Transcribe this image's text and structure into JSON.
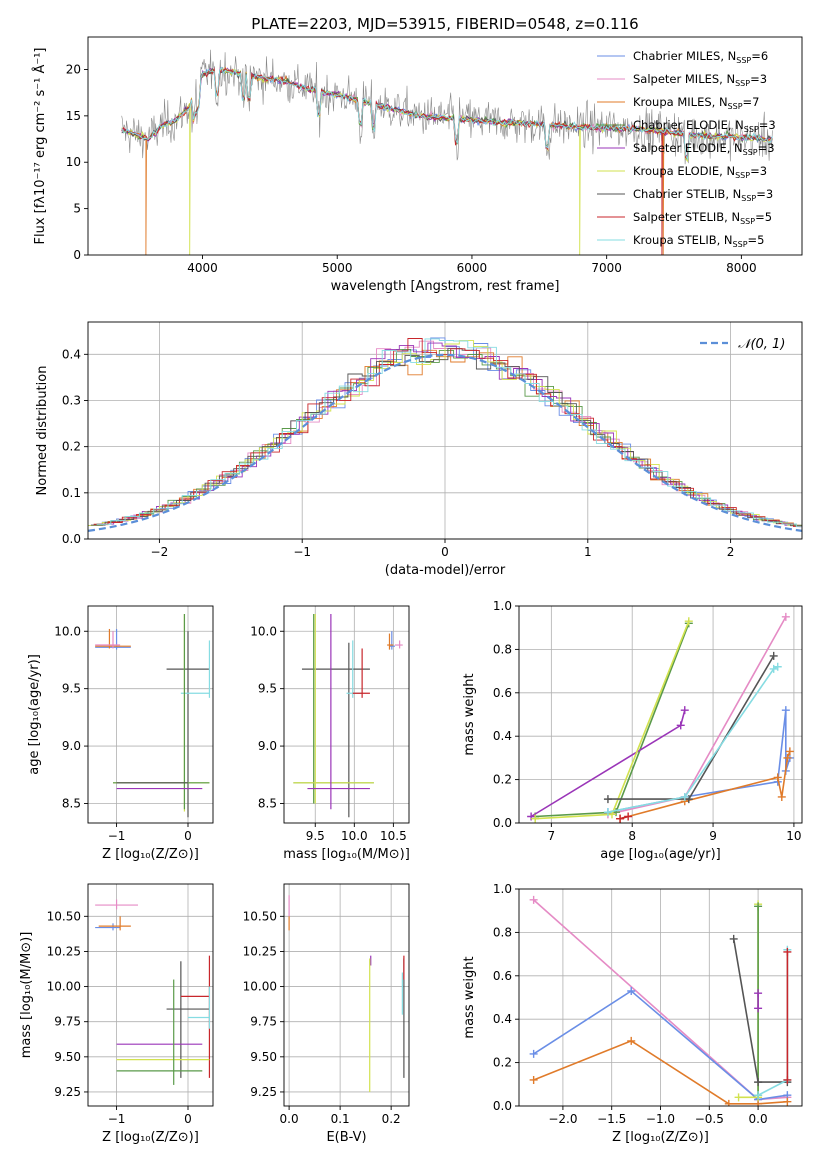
{
  "colors": {
    "blue": "#6a8ee6",
    "pink": "#e58bc5",
    "orange": "#e07b2a",
    "green": "#5a9a4a",
    "purple": "#9a35b8",
    "yellow": "#d2e24f",
    "dark": "#555555",
    "red": "#c8262b",
    "cyan": "#86dce2",
    "normal": "#5b8fd8",
    "gray": "#888888"
  },
  "chart_data": [
    {
      "id": "spectrum",
      "type": "line",
      "title": "PLATE=2203, MJD=53915, FIBERID=0548, z=0.116",
      "xlabel": "wavelength [Angstrom, rest frame]",
      "ylabel": "Flux [fλ10⁻¹⁷ erg cm⁻² s⁻¹ Å⁻¹]",
      "xlim": [
        3150,
        8450
      ],
      "ylim": [
        0,
        23.5
      ],
      "xticks": [
        "4000",
        "5000",
        "6000",
        "7000",
        "8000"
      ],
      "yticks": [
        "0",
        "5",
        "10",
        "15",
        "20"
      ],
      "grid": false,
      "legend_placement": "top-right",
      "legend": [
        {
          "label": "Chabrier MILES, N",
          "sub": "SSP",
          "suffix": "=6",
          "color": "blue"
        },
        {
          "label": "Salpeter MILES, N",
          "sub": "SSP",
          "suffix": "=3",
          "color": "pink"
        },
        {
          "label": "Kroupa MILES, N",
          "sub": "SSP",
          "suffix": "=7",
          "color": "orange"
        },
        {
          "label": "Chabrier ELODIE, N",
          "sub": "SSP",
          "suffix": "=3",
          "color": "green"
        },
        {
          "label": "Salpeter ELODIE, N",
          "sub": "SSP",
          "suffix": "=3",
          "color": "purple"
        },
        {
          "label": "Kroupa ELODIE, N",
          "sub": "SSP",
          "suffix": "=3",
          "color": "yellow"
        },
        {
          "label": "Chabrier STELIB, N",
          "sub": "SSP",
          "suffix": "=3",
          "color": "dark"
        },
        {
          "label": "Salpeter STELIB, N",
          "sub": "SSP",
          "suffix": "=5",
          "color": "red"
        },
        {
          "label": "Kroupa STELIB, N",
          "sub": "SSP",
          "suffix": "=5",
          "color": "cyan"
        }
      ],
      "continuum": {
        "x": [
          3400,
          3500,
          3600,
          3700,
          3800,
          3900,
          4000,
          4100,
          4200,
          4300,
          4400,
          4600,
          4800,
          5000,
          5200,
          5400,
          5600,
          5800,
          6000,
          6200,
          6400,
          6600,
          6800,
          7000,
          7200,
          7400,
          7600,
          7800,
          8000,
          8200
        ],
        "y": [
          13.5,
          13.0,
          12.5,
          14.0,
          14.5,
          16.0,
          19.5,
          20.0,
          19.8,
          19.5,
          19.2,
          18.8,
          17.8,
          17.3,
          16.5,
          15.8,
          15.0,
          14.8,
          14.6,
          14.3,
          14.2,
          14.0,
          13.8,
          13.7,
          13.6,
          13.4,
          13.0,
          12.8,
          12.7,
          12.5
        ]
      }
    },
    {
      "id": "residuals",
      "type": "line",
      "xlabel": "(data-model)/error",
      "ylabel": "Normed distribution",
      "xlim": [
        -2.5,
        2.5
      ],
      "ylim": [
        0,
        0.47
      ],
      "xticks": [
        "−2",
        "−1",
        "0",
        "1",
        "2"
      ],
      "yticks": [
        "0.0",
        "0.1",
        "0.2",
        "0.3",
        "0.4"
      ],
      "grid": true,
      "legend_placement": "top-right",
      "legend": [
        {
          "label": "𝒩(0, 1)",
          "color": "normal"
        }
      ]
    },
    {
      "id": "age-vs-Z",
      "type": "scatter",
      "xlabel": "Z [log₁₀(Z/Z⊙)]",
      "ylabel": "age  [log₁₀(age/yr)]",
      "xlim": [
        -1.4,
        0.35
      ],
      "ylim": [
        8.33,
        10.22
      ],
      "xticks": [
        "−1",
        "0"
      ],
      "yticks": [
        "8.5",
        "9.0",
        "9.5",
        "10.0"
      ],
      "grid": true
    },
    {
      "id": "age-vs-mass",
      "type": "scatter",
      "xlabel": "mass [log₁₀(M/M⊙)]",
      "xlim": [
        9.1,
        10.7
      ],
      "ylim": [
        8.33,
        10.22
      ],
      "xticks": [
        "9.5",
        "10.0",
        "10.5"
      ],
      "yticks": [
        "8.5",
        "9.0",
        "9.5",
        "10.0"
      ],
      "grid": true
    },
    {
      "id": "weight-vs-age",
      "type": "line",
      "xlabel": "age  [log₁₀(age/yr)]",
      "ylabel": "mass weight",
      "xlim": [
        6.6,
        10.1
      ],
      "ylim": [
        0,
        1.0
      ],
      "xticks": [
        "7",
        "8",
        "9",
        "10"
      ],
      "yticks": [
        "0.0",
        "0.2",
        "0.4",
        "0.6",
        "0.8",
        "1.0"
      ],
      "grid": true,
      "series": [
        {
          "color": "blue",
          "x": [
            7.7,
            8.65,
            9.8,
            9.9,
            9.9,
            9.95
          ],
          "y": [
            0.05,
            0.12,
            0.19,
            0.52,
            0.24,
            0.3
          ]
        },
        {
          "color": "pink",
          "x": [
            7.7,
            8.65,
            9.9
          ],
          "y": [
            0.04,
            0.12,
            0.95
          ]
        },
        {
          "color": "orange",
          "x": [
            7.85,
            8.65,
            9.8,
            9.85,
            9.92,
            9.95
          ],
          "y": [
            0.02,
            0.1,
            0.21,
            0.12,
            0.3,
            0.33
          ]
        },
        {
          "color": "green",
          "x": [
            6.8,
            7.8,
            8.7
          ],
          "y": [
            0.03,
            0.05,
            0.92
          ]
        },
        {
          "color": "purple",
          "x": [
            6.75,
            8.6,
            8.65
          ],
          "y": [
            0.03,
            0.45,
            0.52
          ]
        },
        {
          "color": "yellow",
          "x": [
            6.8,
            7.75,
            8.7
          ],
          "y": [
            0.02,
            0.04,
            0.93
          ]
        },
        {
          "color": "dark",
          "x": [
            7.7,
            8.7,
            9.75
          ],
          "y": [
            0.11,
            0.11,
            0.77
          ]
        },
        {
          "color": "red",
          "x": [
            7.85,
            7.95
          ],
          "y": [
            0.02,
            0.03
          ]
        },
        {
          "color": "cyan",
          "x": [
            7.7,
            8.65,
            9.75,
            9.8
          ],
          "y": [
            0.05,
            0.12,
            0.71,
            0.72
          ]
        }
      ]
    },
    {
      "id": "mass-vs-Z",
      "type": "scatter",
      "xlabel": "Z [log₁₀(Z/Z⊙)]",
      "ylabel": "mass [log₁₀(M/M⊙)]",
      "xlim": [
        -1.4,
        0.35
      ],
      "ylim": [
        9.15,
        10.73
      ],
      "xticks": [
        "−1",
        "0"
      ],
      "yticks": [
        "9.25",
        "9.50",
        "9.75",
        "10.00",
        "10.25",
        "10.50"
      ],
      "grid": true
    },
    {
      "id": "mass-vs-EBV",
      "type": "scatter",
      "xlabel": "E(B-V)",
      "xlim": [
        -0.01,
        0.235
      ],
      "ylim": [
        9.15,
        10.73
      ],
      "xticks": [
        "0.0",
        "0.1",
        "0.2"
      ],
      "yticks": [
        "9.25",
        "9.50",
        "9.75",
        "10.00",
        "10.25",
        "10.50"
      ],
      "grid": true
    },
    {
      "id": "weight-vs-Z",
      "type": "line",
      "xlabel": "Z [log₁₀(Z/Z⊙)]",
      "ylabel": "mass weight",
      "xlim": [
        -2.45,
        0.45
      ],
      "ylim": [
        0,
        1.0
      ],
      "xticks": [
        "−2.0",
        "−1.5",
        "−1.0",
        "−0.5",
        "0.0"
      ],
      "yticks": [
        "0.0",
        "0.2",
        "0.4",
        "0.6",
        "0.8",
        "1.0"
      ],
      "grid": true,
      "series": [
        {
          "color": "pink",
          "x": [
            -2.3,
            0.0,
            0.3
          ],
          "y": [
            0.95,
            0.03,
            0.04
          ]
        },
        {
          "color": "blue",
          "x": [
            -2.3,
            -1.3,
            0.0,
            0.3
          ],
          "y": [
            0.24,
            0.53,
            0.03,
            0.05
          ]
        },
        {
          "color": "orange",
          "x": [
            -2.3,
            -1.3,
            -0.3,
            0.0,
            0.3
          ],
          "y": [
            0.12,
            0.3,
            0.01,
            0.01,
            0.02
          ]
        },
        {
          "color": "yellow",
          "x": [
            0.0,
            0.0,
            -0.2
          ],
          "y": [
            0.93,
            0.04,
            0.04
          ]
        },
        {
          "color": "green",
          "x": [
            0.0,
            0.0
          ],
          "y": [
            0.92,
            0.05
          ]
        },
        {
          "color": "dark",
          "x": [
            -0.25,
            0.0,
            0.3
          ],
          "y": [
            0.77,
            0.11,
            0.11
          ]
        },
        {
          "color": "cyan",
          "x": [
            0.3,
            0.3,
            0.0
          ],
          "y": [
            0.72,
            0.12,
            0.05
          ]
        },
        {
          "color": "purple",
          "x": [
            0.0,
            0.0
          ],
          "y": [
            0.52,
            0.45
          ]
        },
        {
          "color": "red",
          "x": [
            0.3,
            0.3
          ],
          "y": [
            0.71,
            0.12
          ]
        }
      ]
    }
  ]
}
